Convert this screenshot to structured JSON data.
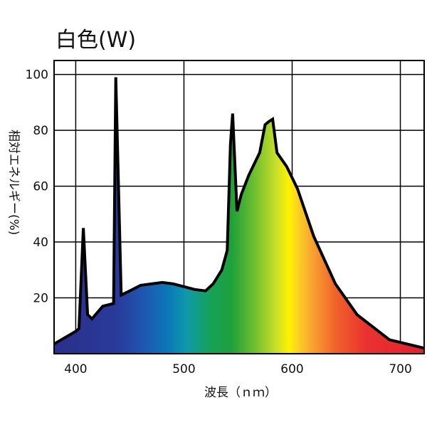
{
  "chart_data": {
    "type": "area",
    "title": "白色(W)",
    "xlabel": "波長（ｎｍ）",
    "ylabel": "相対エネルギー(%)",
    "xlim": [
      380,
      722
    ],
    "ylim": [
      0,
      105
    ],
    "x_ticks": [
      400,
      500,
      600,
      700
    ],
    "y_ticks": [
      20,
      40,
      60,
      80,
      100
    ],
    "grid": true,
    "series": [
      {
        "x": [
          380,
          400,
          403,
          407,
          411,
          415,
          425,
          435,
          437,
          442,
          450,
          460,
          470,
          480,
          490,
          500,
          510,
          520,
          527,
          535,
          540,
          543,
          545,
          549,
          553,
          560,
          565,
          570,
          575,
          578,
          582,
          586,
          595,
          605,
          620,
          640,
          660,
          690,
          722
        ],
        "y": [
          3.5,
          8,
          9,
          45,
          14,
          12.5,
          17,
          18,
          99,
          21,
          22.5,
          24.5,
          25,
          25.5,
          25,
          24,
          23,
          22.5,
          25,
          30,
          37,
          75,
          86,
          51,
          57,
          64,
          68,
          72,
          82,
          83,
          84,
          72,
          67,
          59,
          42,
          25,
          14,
          5,
          2
        ]
      }
    ]
  }
}
